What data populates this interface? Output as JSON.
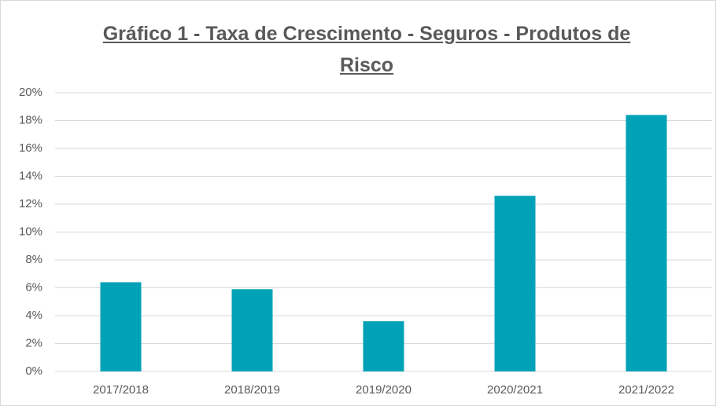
{
  "chart_data": {
    "type": "bar",
    "title": "Gráfico 1 - Taxa de Crescimento - Seguros - Produtos de Risco",
    "categories": [
      "2017/2018",
      "2018/2019",
      "2019/2020",
      "2020/2021",
      "2021/2022"
    ],
    "values": [
      6.4,
      5.9,
      3.6,
      12.6,
      18.4
    ],
    "color": "#00a2b8",
    "ylim": [
      0,
      20
    ],
    "yticks": [
      {
        "value": 0,
        "label": "0%"
      },
      {
        "value": 2,
        "label": "2%"
      },
      {
        "value": 4,
        "label": "4%"
      },
      {
        "value": 6,
        "label": "6%"
      },
      {
        "value": 8,
        "label": "8%"
      },
      {
        "value": 10,
        "label": "10%"
      },
      {
        "value": 12,
        "label": "12%"
      },
      {
        "value": 14,
        "label": "14%"
      },
      {
        "value": 16,
        "label": "16%"
      },
      {
        "value": 18,
        "label": "18%"
      },
      {
        "value": 20,
        "label": "20%"
      }
    ],
    "grid": true
  }
}
